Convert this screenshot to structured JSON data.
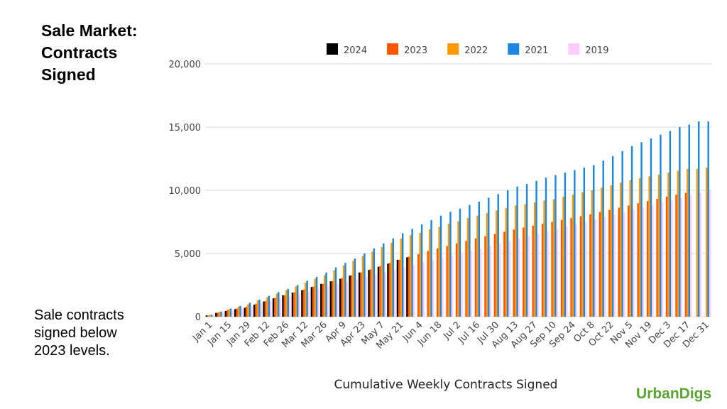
{
  "chart_data": {
    "type": "bar",
    "title": "Sale Market: Contracts Signed",
    "note": "Sale contracts signed below 2023 levels.",
    "x_label": "Cumulative Weekly Contracts Signed",
    "brand": "UrbanDigs",
    "categories": [
      "Jan 1",
      null,
      "Jan 15",
      null,
      "Jan 29",
      null,
      "Feb 12",
      null,
      "Feb 26",
      null,
      "Mar 12",
      null,
      "Mar 26",
      null,
      "Apr 9",
      null,
      "Apr 23",
      null,
      "May 7",
      null,
      "May 21",
      null,
      "Jun 4",
      null,
      "Jun 18",
      null,
      "Jul 2",
      null,
      "Jul 16",
      null,
      "Jul 30",
      null,
      "Aug 13",
      null,
      "Aug 27",
      null,
      "Sep 10",
      null,
      "Sep 24",
      null,
      "Oct 8",
      null,
      "Oct 22",
      null,
      "Nov 5",
      null,
      "Nov 19",
      null,
      "Dec 3",
      null,
      "Dec 17",
      null,
      "Dec 31"
    ],
    "series": [
      {
        "name": "2024",
        "color": "#000000",
        "values": [
          100,
          300,
          450,
          600,
          700,
          950,
          1200,
          1450,
          1700,
          1900,
          2100,
          2350,
          2600,
          2800,
          3000,
          3250,
          3500,
          3700,
          3950,
          4200,
          4500,
          4700,
          null,
          null,
          null,
          null,
          null,
          null,
          null,
          null,
          null,
          null,
          null,
          null,
          null,
          null,
          null,
          null,
          null,
          null,
          null,
          null,
          null,
          null,
          null,
          null,
          null,
          null,
          null,
          null,
          null,
          null,
          null
        ]
      },
      {
        "name": "2023",
        "color": "#ff5500",
        "values": [
          100,
          320,
          530,
          650,
          800,
          1020,
          1250,
          1480,
          1700,
          1930,
          2150,
          2380,
          2600,
          2820,
          3050,
          3280,
          3500,
          3750,
          4000,
          4250,
          4500,
          4750,
          4950,
          5200,
          5400,
          5600,
          5800,
          6000,
          6200,
          6370,
          6550,
          6720,
          6900,
          7050,
          7200,
          7350,
          7500,
          7650,
          7800,
          7950,
          8100,
          8280,
          8450,
          8630,
          8800,
          8980,
          9150,
          9330,
          9500,
          9650,
          9800,
          null,
          null
        ]
      },
      {
        "name": "2022",
        "color": "#ff9900",
        "values": [
          130,
          380,
          600,
          800,
          1000,
          1280,
          1550,
          1820,
          2100,
          2400,
          2700,
          3000,
          3300,
          3680,
          4050,
          4420,
          4800,
          5150,
          5500,
          5850,
          6200,
          6450,
          6650,
          6900,
          7100,
          7350,
          7550,
          7800,
          8000,
          8200,
          8400,
          8600,
          8800,
          8900,
          9050,
          9200,
          9300,
          9500,
          9650,
          9850,
          10000,
          10200,
          10400,
          10600,
          10800,
          10950,
          11100,
          11250,
          11400,
          11550,
          11700,
          11700,
          11800
        ]
      },
      {
        "name": "2021",
        "color": "#1a88e0",
        "values": [
          150,
          400,
          650,
          850,
          1100,
          1350,
          1650,
          1950,
          2200,
          2500,
          2850,
          3150,
          3500,
          3900,
          4250,
          4600,
          5000,
          5400,
          5800,
          6200,
          6600,
          6950,
          7300,
          7650,
          8000,
          8300,
          8550,
          8850,
          9100,
          9400,
          9700,
          10000,
          10300,
          10500,
          10750,
          11000,
          11200,
          11400,
          11600,
          11800,
          12000,
          12350,
          12700,
          13100,
          13500,
          13800,
          14100,
          14400,
          14700,
          15000,
          15200,
          15450,
          15450
        ]
      },
      {
        "name": "2019",
        "color": "#ffccff",
        "values": [
          100,
          290,
          480,
          670,
          860,
          1050,
          1240,
          1430,
          1620,
          1810,
          2000,
          2190,
          2380,
          2570,
          2760,
          2950,
          3140,
          3330,
          3520,
          3710,
          3900,
          4090,
          4280,
          4470,
          4660,
          4850,
          5040,
          5230,
          5420,
          5610,
          5800,
          5990,
          6180,
          6370,
          6560,
          6750,
          6940,
          7130,
          7320,
          7510,
          7700,
          7890,
          8080,
          8270,
          8460,
          8650,
          8840,
          9030,
          9220,
          9410,
          9600,
          9790,
          9980
        ]
      }
    ],
    "ylim": [
      0,
      20000
    ],
    "yticks": [
      0,
      {
        "value": 5000,
        "label": "5,000"
      },
      {
        "value": 10000,
        "label": "10,000"
      },
      {
        "value": 15000,
        "label": "15,000"
      },
      {
        "value": 20000,
        "label": "20,000"
      }
    ],
    "grid": true,
    "legend": "top"
  }
}
